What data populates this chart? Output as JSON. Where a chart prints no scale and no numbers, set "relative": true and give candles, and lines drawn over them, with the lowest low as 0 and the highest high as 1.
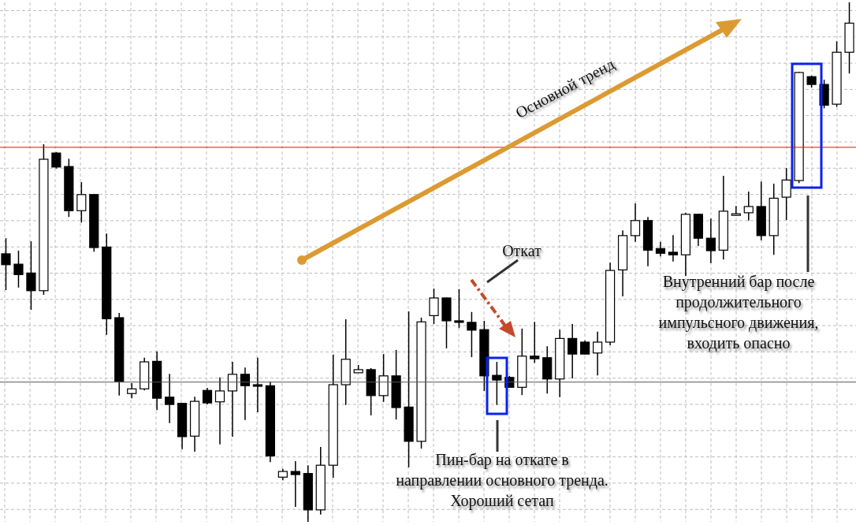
{
  "chart_data": {
    "type": "candlestick",
    "relative": true,
    "grid": true,
    "tick_labels": false,
    "categories": [
      null,
      null,
      null,
      null,
      null,
      null,
      null,
      null,
      null,
      null,
      null,
      null,
      null,
      null,
      null,
      null,
      null,
      null,
      null,
      null,
      null,
      null,
      null,
      null,
      null,
      null,
      null,
      null,
      null,
      null,
      null,
      null,
      null,
      null,
      null,
      null,
      null,
      null,
      null,
      null,
      null,
      null,
      null,
      null,
      null,
      null,
      null,
      null,
      null,
      null,
      null,
      null,
      null,
      null,
      null,
      null,
      null,
      null,
      null,
      null,
      null,
      null,
      null,
      null,
      null,
      null,
      null,
      null
    ],
    "ohlc": [
      [
        0.516,
        0.546,
        0.446,
        0.495
      ],
      [
        0.496,
        0.522,
        0.451,
        0.476
      ],
      [
        0.479,
        0.54,
        0.408,
        0.445
      ],
      [
        0.445,
        0.727,
        0.437,
        0.698
      ],
      [
        0.71,
        0.712,
        0.68,
        0.683
      ],
      [
        0.684,
        0.699,
        0.587,
        0.599
      ],
      [
        0.599,
        0.654,
        0.576,
        0.63
      ],
      [
        0.63,
        0.631,
        0.52,
        0.528
      ],
      [
        0.529,
        0.555,
        0.36,
        0.391
      ],
      [
        0.393,
        0.402,
        0.243,
        0.27
      ],
      [
        0.247,
        0.267,
        0.238,
        0.256
      ],
      [
        0.256,
        0.316,
        0.253,
        0.308
      ],
      [
        0.309,
        0.328,
        0.215,
        0.238
      ],
      [
        0.24,
        0.285,
        0.19,
        0.226
      ],
      [
        0.228,
        0.228,
        0.14,
        0.164
      ],
      [
        0.165,
        0.241,
        0.135,
        0.232
      ],
      [
        0.253,
        0.258,
        0.226,
        0.229
      ],
      [
        0.231,
        0.278,
        0.149,
        0.252
      ],
      [
        0.252,
        0.308,
        0.164,
        0.284
      ],
      [
        0.284,
        0.297,
        0.196,
        0.262
      ],
      [
        0.264,
        0.316,
        0.211,
        0.261
      ],
      [
        0.262,
        0.27,
        0.115,
        0.127
      ],
      [
        0.086,
        0.102,
        0.08,
        0.097
      ],
      [
        0.097,
        0.117,
        0.029,
        0.091
      ],
      [
        0.093,
        0.109,
        0,
        0.023
      ],
      [
        0.023,
        0.144,
        0.014,
        0.109
      ],
      [
        0.109,
        0.322,
        0.085,
        0.264
      ],
      [
        0.264,
        0.39,
        0.225,
        0.313
      ],
      [
        0.287,
        0.302,
        0.287,
        0.293
      ],
      [
        0.293,
        0.296,
        0.205,
        0.243
      ],
      [
        0.243,
        0.323,
        0.231,
        0.281
      ],
      [
        0.281,
        0.331,
        0.197,
        0.22
      ],
      [
        0.221,
        0.405,
        0.105,
        0.155
      ],
      [
        0.155,
        0.393,
        0.141,
        0.385
      ],
      [
        0.397,
        0.449,
        0.381,
        0.431
      ],
      [
        0.431,
        0.432,
        0.334,
        0.387
      ],
      [
        0.387,
        0.448,
        0.373,
        0.384
      ],
      [
        0.384,
        0.404,
        0.317,
        0.369
      ],
      [
        0.37,
        0.387,
        0.252,
        0.281
      ],
      [
        0.282,
        0.308,
        0.225,
        0.273
      ],
      [
        0.278,
        0.281,
        0.259,
        0.259
      ],
      [
        0.259,
        0.372,
        0.244,
        0.319
      ],
      [
        0.319,
        0.385,
        0.306,
        0.314
      ],
      [
        0.316,
        0.338,
        0.247,
        0.275
      ],
      [
        0.275,
        0.37,
        0.24,
        0.353
      ],
      [
        0.353,
        0.381,
        0.276,
        0.323
      ],
      [
        0.346,
        0.349,
        0.322,
        0.323
      ],
      [
        0.325,
        0.366,
        0.282,
        0.346
      ],
      [
        0.346,
        0.499,
        0.34,
        0.484
      ],
      [
        0.485,
        0.561,
        0.434,
        0.551
      ],
      [
        0.551,
        0.613,
        0.539,
        0.58
      ],
      [
        0.58,
        0.587,
        0.492,
        0.523
      ],
      [
        0.526,
        0.539,
        0.511,
        0.517
      ],
      [
        0.519,
        0.552,
        0.501,
        0.514
      ],
      [
        0.514,
        0.595,
        0.473,
        0.592
      ],
      [
        0.592,
        0.593,
        0.531,
        0.546
      ],
      [
        0.546,
        0.584,
        0.498,
        0.522
      ],
      [
        0.523,
        0.666,
        0.505,
        0.598
      ],
      [
        0.59,
        0.608,
        0.589,
        0.593
      ],
      [
        0.595,
        0.636,
        0.58,
        0.607
      ],
      [
        0.607,
        0.655,
        0.542,
        0.551
      ],
      [
        0.551,
        0.651,
        0.514,
        0.623
      ],
      [
        0.625,
        0.681,
        0.581,
        0.658
      ],
      [
        0.657,
        0.866,
        0.652,
        0.865
      ],
      [
        0.857,
        0.859,
        0.836,
        0.842
      ],
      [
        0.842,
        0.851,
        0.796,
        0.802
      ],
      [
        0.804,
        0.925,
        0.799,
        0.904
      ],
      [
        0.904,
        1,
        0.863,
        0.96
      ]
    ],
    "ref_lines": [
      {
        "axis": "y",
        "value": 0.721,
        "color": "#ff0000"
      },
      {
        "axis": "y",
        "value": 0.269,
        "color": "#555555"
      }
    ],
    "annotations": [
      "Основной тренд",
      "Откат",
      "Пин-бар на откате в направлении основного тренда. Хороший сетап",
      "Внутренний бар после продолжительного импульсного движения, входить опасно"
    ]
  }
}
